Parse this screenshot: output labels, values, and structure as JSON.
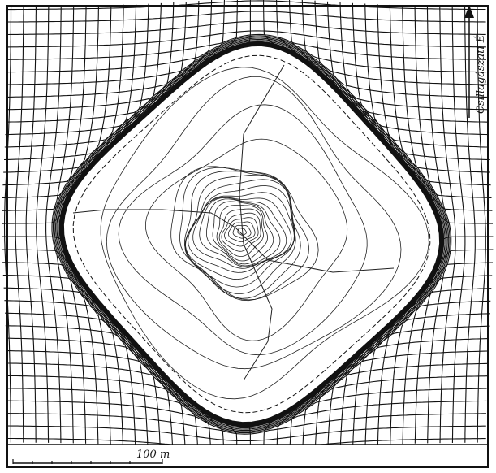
{
  "labels": {
    "north": "Csillagászati É",
    "scale": "100 m"
  }
}
